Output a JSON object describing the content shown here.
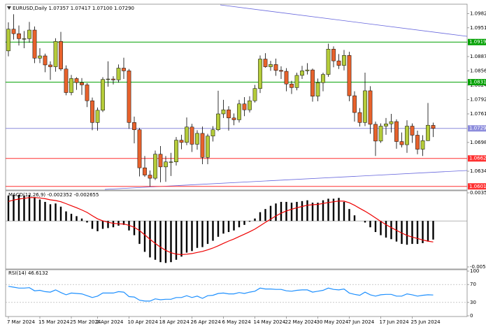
{
  "chart_data": [
    {
      "type": "candlestick",
      "title": "EURUSD,Daily  1.07357 1.07417 1.07100 1.07290",
      "up_color": "#b5cc3a",
      "down_color": "#e8622c",
      "open": [
        1.09,
        1.0948,
        1.0938,
        1.0927,
        1.0927,
        1.0946,
        1.0884,
        1.0889,
        1.0869,
        1.0865,
        1.0921,
        1.086,
        1.0808,
        1.0839,
        1.083,
        1.0825,
        1.079,
        1.0742,
        1.0769,
        1.0837,
        1.0838,
        1.0836,
        1.0862,
        1.0856,
        1.0742,
        1.0726,
        1.0642,
        1.0626,
        1.0619,
        1.0672,
        1.0644,
        1.0655,
        1.0655,
        1.0703,
        1.0698,
        1.0732,
        1.0694,
        1.0718,
        1.0665,
        1.0712,
        1.0726,
        1.0761,
        1.077,
        1.0752,
        1.0748,
        1.0783,
        1.077,
        1.079,
        1.0817,
        1.0882,
        1.0865,
        1.087,
        1.0857,
        1.0855,
        1.0827,
        1.0819,
        1.0846,
        1.0856,
        1.0858,
        1.08,
        1.083,
        1.0848,
        1.0904,
        1.0878,
        1.0868,
        1.089,
        1.0801,
        1.0764,
        1.0742,
        1.0812,
        1.0738,
        1.0701,
        1.0734,
        1.0739,
        1.0744,
        1.07,
        1.0693,
        1.0734,
        1.0714,
        1.0683,
        1.0702,
        1.07357
      ],
      "high": [
        1.0963,
        1.0981,
        1.0956,
        1.0944,
        1.0964,
        1.0954,
        1.0906,
        1.0894,
        1.0877,
        1.0928,
        1.0942,
        1.0868,
        1.0847,
        1.0842,
        1.084,
        1.0829,
        1.0797,
        1.0775,
        1.0842,
        1.0877,
        1.0844,
        1.087,
        1.0885,
        1.086,
        1.0755,
        1.073,
        1.0668,
        1.0636,
        1.068,
        1.069,
        1.0668,
        1.0675,
        1.071,
        1.0715,
        1.0753,
        1.0739,
        1.0725,
        1.0733,
        1.0717,
        1.0734,
        1.0812,
        1.0792,
        1.0778,
        1.0762,
        1.0792,
        1.0798,
        1.08,
        1.0825,
        1.089,
        1.0895,
        1.0878,
        1.0883,
        1.0866,
        1.0862,
        1.0834,
        1.0852,
        1.0867,
        1.0873,
        1.0861,
        1.0839,
        1.0852,
        1.0916,
        1.091,
        1.0893,
        1.0902,
        1.0898,
        1.0811,
        1.0774,
        1.0852,
        1.0822,
        1.0744,
        1.074,
        1.0752,
        1.0761,
        1.0749,
        1.072,
        1.0747,
        1.074,
        1.0724,
        1.0714,
        1.0785,
        1.07417
      ],
      "low": [
        1.0888,
        1.0925,
        1.0912,
        1.0906,
        1.0918,
        1.0873,
        1.0873,
        1.0853,
        1.0836,
        1.0854,
        1.0856,
        1.0802,
        1.0802,
        1.0814,
        1.0803,
        1.0776,
        1.0725,
        1.0724,
        1.0765,
        1.0821,
        1.0826,
        1.083,
        1.0838,
        1.0728,
        1.0696,
        1.0623,
        1.0622,
        1.0601,
        1.0615,
        1.061,
        1.0611,
        1.0624,
        1.0647,
        1.0683,
        1.0692,
        1.0677,
        1.0682,
        1.065,
        1.065,
        1.07,
        1.0723,
        1.0752,
        1.0724,
        1.0736,
        1.0742,
        1.0756,
        1.0764,
        1.0786,
        1.0807,
        1.0863,
        1.0856,
        1.0845,
        1.0838,
        1.0811,
        1.0805,
        1.0813,
        1.0838,
        1.0848,
        1.0788,
        1.0789,
        1.0811,
        1.0843,
        1.0864,
        1.086,
        1.0857,
        1.0789,
        1.0744,
        1.0733,
        1.0734,
        1.0717,
        1.0668,
        1.0697,
        1.0715,
        1.072,
        1.0684,
        1.0687,
        1.0675,
        1.0697,
        1.0672,
        1.0668,
        1.0701,
        1.071
      ],
      "close": [
        1.0948,
        1.0938,
        1.0927,
        1.0927,
        1.0946,
        1.0884,
        1.0889,
        1.0869,
        1.0865,
        1.0921,
        1.086,
        1.0808,
        1.0839,
        1.083,
        1.0825,
        1.079,
        1.0742,
        1.0769,
        1.0837,
        1.0838,
        1.0836,
        1.0862,
        1.0856,
        1.0742,
        1.0726,
        1.0642,
        1.0626,
        1.0619,
        1.0672,
        1.0644,
        1.0655,
        1.0655,
        1.0703,
        1.0698,
        1.0732,
        1.0694,
        1.0718,
        1.0665,
        1.0712,
        1.0726,
        1.0761,
        1.077,
        1.0752,
        1.0748,
        1.0783,
        1.077,
        1.079,
        1.0817,
        1.0882,
        1.0865,
        1.087,
        1.0857,
        1.0855,
        1.0827,
        1.0819,
        1.0846,
        1.0856,
        1.0858,
        1.08,
        1.083,
        1.0848,
        1.0904,
        1.0878,
        1.0868,
        1.089,
        1.0801,
        1.0764,
        1.0742,
        1.0812,
        1.0738,
        1.0701,
        1.0734,
        1.0739,
        1.0744,
        1.07,
        1.0693,
        1.0734,
        1.0714,
        1.0683,
        1.0702,
        1.0736,
        1.0729
      ],
      "ylim": [
        1.0596,
        1.1
      ],
      "yticks": [
        1.09825,
        {
          "value": 1.0951,
          "label": "1.09510"
        },
        1.08875,
        {
          "value": 1.0856,
          "label": "1.08560"
        },
        1.08245,
        1.07925,
        {
          "value": 1.0761,
          "label": "1.07610"
        },
        {
          "value": 1.0698,
          "label": "1.06980"
        },
        1.06345
      ],
      "levels": [
        {
          "value": 1.09195,
          "label": "1.09195",
          "color": "#00a000"
        },
        {
          "value": 1.0831,
          "label": "1.08310",
          "color": "#00a000"
        },
        {
          "value": 1.0729,
          "label": "1.07290",
          "color": "#8c8cdc"
        },
        {
          "value": 1.06627,
          "label": "1.06627",
          "color": "#ff3030"
        },
        {
          "value": 1.0601,
          "label": "1.06010",
          "color": "#ff3030"
        }
      ],
      "xticks": [
        {
          "value": 0,
          "label": "7 Mar 2024"
        },
        {
          "value": 6,
          "label": "15 Mar 2024"
        },
        {
          "value": 12,
          "label": "25 Mar 2024"
        },
        {
          "value": 17,
          "label": "2 Apr 2024"
        },
        {
          "value": 23,
          "label": "10 Apr 2024"
        },
        {
          "value": 29,
          "label": "18 Apr 2024"
        },
        {
          "value": 35,
          "label": "26 Apr 2024"
        },
        {
          "value": 41,
          "label": "6 May 2024"
        },
        {
          "value": 47,
          "label": "14 May 2024"
        },
        {
          "value": 53,
          "label": "22 May 2024"
        },
        {
          "value": 59,
          "label": "30 May 2024"
        },
        {
          "value": 65,
          "label": "7 Jun 2024"
        },
        {
          "value": 71,
          "label": "17 Jun 2024"
        },
        {
          "value": 77,
          "label": "25 Jun 2024"
        }
      ]
    },
    {
      "type": "macd",
      "title": "MACD(12,26,9) -0.002352 -0.002655",
      "series": [
        {
          "type": "bar",
          "color": "#000000",
          "values": [
            0.0032,
            0.0033,
            0.0033,
            0.0032,
            0.0033,
            0.003,
            0.0027,
            0.0024,
            0.0021,
            0.0022,
            0.0018,
            0.0012,
            0.0009,
            0.0006,
            0.0003,
            -0.0002,
            -0.001,
            -0.0013,
            -0.001,
            -0.0009,
            -0.0008,
            -0.0006,
            -0.0005,
            -0.0012,
            -0.0018,
            -0.0029,
            -0.0039,
            -0.0046,
            -0.0049,
            -0.0052,
            -0.0053,
            -0.0052,
            -0.0049,
            -0.0045,
            -0.004,
            -0.0038,
            -0.0034,
            -0.0033,
            -0.0029,
            -0.0025,
            -0.002,
            -0.0016,
            -0.0014,
            -0.0012,
            -0.0008,
            -0.0005,
            -0.0001,
            0.0003,
            0.0011,
            0.0015,
            0.0019,
            0.0022,
            0.0024,
            0.0024,
            0.0023,
            0.0024,
            0.0025,
            0.0026,
            0.0023,
            0.0023,
            0.0026,
            0.0028,
            0.0028,
            0.0029,
            0.0024,
            0.0015,
            0.0007,
            0.0,
            -0.0002,
            -0.0008,
            -0.0014,
            -0.0018,
            -0.0021,
            -0.0023,
            -0.0026,
            -0.0029,
            -0.003,
            -0.0029,
            -0.0029,
            -0.0028,
            -0.0026,
            -0.002352
          ]
        },
        {
          "type": "line",
          "color": "#ee0000",
          "values": [
            0.00246,
            0.00263,
            0.00276,
            0.00285,
            0.00294,
            0.00295,
            0.0029,
            0.0028,
            0.00266,
            0.00257,
            0.00242,
            0.00217,
            0.00192,
            0.00166,
            0.00138,
            0.00107,
            0.00066,
            0.00026,
            1e-05,
            -0.00017,
            -0.0003,
            -0.00036,
            -0.00039,
            -0.00055,
            -0.0008,
            -0.00122,
            -0.00176,
            -0.00232,
            -0.00284,
            -0.00331,
            -0.00371,
            -0.00401,
            -0.00419,
            -0.00425,
            -0.0042,
            -0.00412,
            -0.00398,
            -0.00384,
            -0.00365,
            -0.00342,
            -0.00314,
            -0.00283,
            -0.00254,
            -0.00228,
            -0.00198,
            -0.00168,
            -0.00137,
            -0.00103,
            -0.00061,
            -0.00019,
            0.00023,
            0.00062,
            0.00098,
            0.00126,
            0.00147,
            0.00166,
            0.00182,
            0.00198,
            0.00204,
            0.00209,
            0.0022,
            0.00232,
            0.00241,
            0.00251,
            0.00249,
            0.00229,
            0.00197,
            0.00158,
            0.00122,
            0.00082,
            0.00038,
            -6e-05,
            -0.00047,
            -0.00084,
            -0.00119,
            -0.00153,
            -0.00183,
            -0.00204,
            -0.00221,
            -0.0024,
            -0.00255,
            -0.002655
          ]
        }
      ],
      "ylim": [
        -0.0058,
        0.00354
      ],
      "yticks": [
        0.00354,
        -0.0058
      ]
    },
    {
      "type": "line",
      "title": "RSI(14) 46.6132",
      "series": [
        {
          "color": "#1e90ff",
          "values": [
            66,
            64,
            62,
            62,
            63,
            56,
            57,
            54,
            53,
            58,
            52,
            47,
            51,
            50,
            49,
            45,
            41,
            44,
            51,
            51,
            51,
            54,
            53,
            43,
            42,
            35,
            33,
            33,
            38,
            36,
            37,
            37,
            41,
            41,
            45,
            41,
            44,
            39,
            45,
            46,
            50,
            51,
            49,
            49,
            52,
            50,
            53,
            55,
            62,
            60,
            60,
            59,
            59,
            56,
            55,
            57,
            58,
            58,
            53,
            55,
            57,
            62,
            59,
            58,
            60,
            51,
            48,
            46,
            53,
            47,
            44,
            47,
            48,
            48,
            44,
            44,
            49,
            47,
            44,
            46,
            47,
            46.6132
          ]
        }
      ],
      "ylim": [
        0,
        100
      ],
      "yticks": [
        100,
        70,
        30,
        0
      ]
    }
  ]
}
